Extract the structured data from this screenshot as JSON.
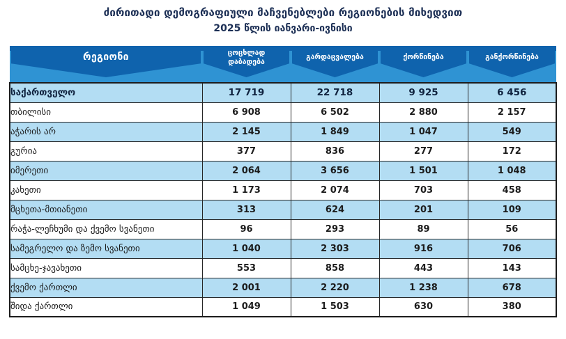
{
  "title": {
    "line1": "ძირითადი დემოგრაფიული მაჩვენებლები რეგიონების მიხედვით",
    "line2": "2025 წლის იანვარი-ივნისი"
  },
  "colors": {
    "dark_blue": "#0f63ad",
    "band_blue": "#2f93d3",
    "row_blue": "#b3ddf3",
    "title_color": "#1c2f55"
  },
  "table": {
    "columns": [
      "რეგიონი",
      "ცოცხლად დაბადება",
      "გარდაცვალება",
      "ქორწინება",
      "განქორწინება"
    ],
    "rows": [
      {
        "region": "საქართველო",
        "values": [
          "17 719",
          "22 718",
          "9 925",
          "6 456"
        ],
        "total": true
      },
      {
        "region": "თბილისი",
        "values": [
          "6 908",
          "6 502",
          "2 880",
          "2 157"
        ]
      },
      {
        "region": "აჭარის არ",
        "values": [
          "2 145",
          "1 849",
          "1 047",
          "549"
        ]
      },
      {
        "region": "გურია",
        "values": [
          "377",
          "836",
          "277",
          "172"
        ]
      },
      {
        "region": "იმერეთი",
        "values": [
          "2 064",
          "3 656",
          "1 501",
          "1 048"
        ]
      },
      {
        "region": "კახეთი",
        "values": [
          "1 173",
          "2 074",
          "703",
          "458"
        ]
      },
      {
        "region": "მცხეთა-მთიანეთი",
        "values": [
          "313",
          "624",
          "201",
          "109"
        ]
      },
      {
        "region": "რაჭა-ლეჩხუმი და ქვემო სვანეთი",
        "values": [
          "96",
          "293",
          "89",
          "56"
        ]
      },
      {
        "region": "სამეგრელო და ზემო სვანეთი",
        "values": [
          "1 040",
          "2 303",
          "916",
          "706"
        ]
      },
      {
        "region": "სამცხე-ჯავახეთი",
        "values": [
          "553",
          "858",
          "443",
          "143"
        ]
      },
      {
        "region": "ქვემო ქართლი",
        "values": [
          "2 001",
          "2 220",
          "1 238",
          "678"
        ]
      },
      {
        "region": "შიდა ქართლი",
        "values": [
          "1 049",
          "1 503",
          "630",
          "380"
        ]
      }
    ]
  },
  "chart_data": {
    "type": "table",
    "title": "ძირითადი დემოგრაფიული მაჩვენებლები რეგიონების მიხედვით, 2025 წლის იანვარი-ივნისი",
    "columns": [
      "რეგიონი",
      "ცოცხლად დაბადება",
      "გარდაცვალება",
      "ქორწინება",
      "განქორწინება"
    ],
    "rows": [
      {
        "region": "საქართველო",
        "live_births": 17719,
        "deaths": 22718,
        "marriages": 9925,
        "divorces": 6456
      },
      {
        "region": "თბილისი",
        "live_births": 6908,
        "deaths": 6502,
        "marriages": 2880,
        "divorces": 2157
      },
      {
        "region": "აჭარის არ",
        "live_births": 2145,
        "deaths": 1849,
        "marriages": 1047,
        "divorces": 549
      },
      {
        "region": "გურია",
        "live_births": 377,
        "deaths": 836,
        "marriages": 277,
        "divorces": 172
      },
      {
        "region": "იმერეთი",
        "live_births": 2064,
        "deaths": 3656,
        "marriages": 1501,
        "divorces": 1048
      },
      {
        "region": "კახეთი",
        "live_births": 1173,
        "deaths": 2074,
        "marriages": 703,
        "divorces": 458
      },
      {
        "region": "მცხეთა-მთიანეთი",
        "live_births": 313,
        "deaths": 624,
        "marriages": 201,
        "divorces": 109
      },
      {
        "region": "რაჭა-ლეჩხუმი და ქვემო სვანეთი",
        "live_births": 96,
        "deaths": 293,
        "marriages": 89,
        "divorces": 56
      },
      {
        "region": "სამეგრელო და ზემო სვანეთი",
        "live_births": 1040,
        "deaths": 2303,
        "marriages": 916,
        "divorces": 706
      },
      {
        "region": "სამცხე-ჯავახეთი",
        "live_births": 553,
        "deaths": 858,
        "marriages": 443,
        "divorces": 143
      },
      {
        "region": "ქვემო ქართლი",
        "live_births": 2001,
        "deaths": 2220,
        "marriages": 1238,
        "divorces": 678
      },
      {
        "region": "შიდა ქართლი",
        "live_births": 1049,
        "deaths": 1503,
        "marriages": 630,
        "divorces": 380
      }
    ]
  }
}
